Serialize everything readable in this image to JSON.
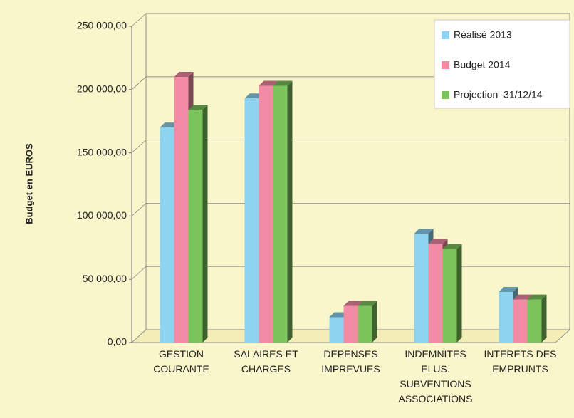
{
  "chart_data": {
    "type": "bar3d",
    "y_label": "Budget en EUROS",
    "categories": [
      "GESTION\nCOURANTE",
      "SALAIRES ET\nCHARGES",
      "DEPENSES\nIMPREVUES",
      "INDEMNITES\nELUS.\nSUBVENTIONS\nASSOCIATIONS",
      "INTERETS DES\nEMPRUNTS"
    ],
    "series": [
      {
        "name": "Réalisé 2013",
        "color": "#8ed3f0",
        "values": [
          170000,
          193000,
          20000,
          86000,
          40000
        ]
      },
      {
        "name": "Budget 2014",
        "color": "#f28ba4",
        "values": [
          210000,
          203000,
          29000,
          78000,
          34000
        ]
      },
      {
        "name": "Projection  31/12/14",
        "color": "#7dc35b",
        "values": [
          184000,
          203000,
          29000,
          74000,
          34000
        ]
      }
    ],
    "ylim": [
      0,
      250000
    ],
    "yticks": [
      {
        "value": 0,
        "label": "0,00"
      },
      {
        "value": 50000,
        "label": "50 000,00"
      },
      {
        "value": 100000,
        "label": "100 000,00"
      },
      {
        "value": 150000,
        "label": "150 000,00"
      },
      {
        "value": 200000,
        "label": "200 000,00"
      },
      {
        "value": 250000,
        "label": "250 000,00"
      }
    ],
    "grid": true,
    "legend": "top-right"
  }
}
